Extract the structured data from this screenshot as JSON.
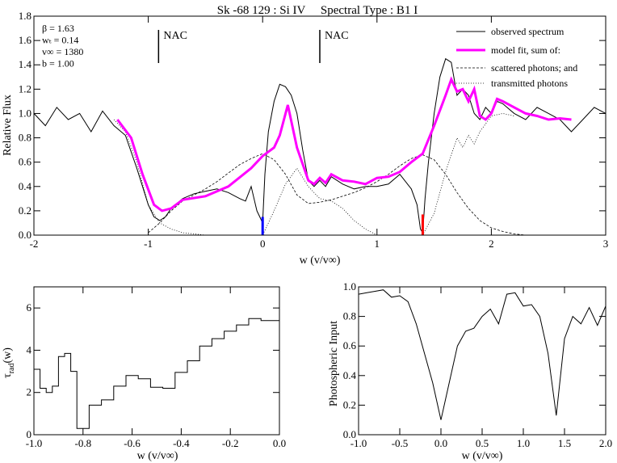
{
  "chart_data": [
    {
      "type": "line",
      "title": "Sk -68 129 : Si IV     Spectral Type : B1 I",
      "xlabel": "w (v/v∞)",
      "ylabel": "Relative Flux",
      "xlim": [
        -2,
        3
      ],
      "ylim": [
        0,
        1.8
      ],
      "xticks": [
        -2,
        -1,
        0,
        1,
        2,
        3
      ],
      "yticks": [
        0.0,
        0.2,
        0.4,
        0.6,
        0.8,
        1.0,
        1.2,
        1.4,
        1.6,
        1.8
      ],
      "params": [
        "β  = 1.63",
        "wₜ = 0.14",
        "v∞ = 1380",
        "b  = 1.00"
      ],
      "annotations": [
        {
          "label": "NAC",
          "x": -0.91
        },
        {
          "label": "NAC",
          "x": 0.5
        }
      ],
      "markers": [
        {
          "x": 0.0,
          "color": "#0000ff",
          "y_top": 0.15
        },
        {
          "x": 1.4,
          "color": "#ff0000",
          "y_top": 0.17
        }
      ],
      "legend": {
        "position": "top-right",
        "entries": [
          {
            "label": "observed spectrum",
            "style": "solid",
            "color": "#000000"
          },
          {
            "label": "model fit, sum of:",
            "style": "solid",
            "color": "#ff00ff"
          },
          {
            "label": "scattered photons; and",
            "style": "dashed",
            "color": "#000000"
          },
          {
            "label": "transmitted photons",
            "style": "dotted",
            "color": "#000000"
          }
        ]
      },
      "series": [
        {
          "name": "observed spectrum",
          "x": [
            -2.0,
            -1.9,
            -1.8,
            -1.7,
            -1.6,
            -1.5,
            -1.4,
            -1.3,
            -1.2,
            -1.1,
            -1.0,
            -0.95,
            -0.9,
            -0.85,
            -0.8,
            -0.7,
            -0.6,
            -0.5,
            -0.4,
            -0.3,
            -0.2,
            -0.15,
            -0.1,
            -0.05,
            -0.02,
            0.0,
            0.02,
            0.05,
            0.1,
            0.15,
            0.2,
            0.25,
            0.3,
            0.35,
            0.4,
            0.45,
            0.5,
            0.55,
            0.6,
            0.7,
            0.8,
            0.9,
            1.0,
            1.1,
            1.2,
            1.3,
            1.35,
            1.38,
            1.4,
            1.42,
            1.45,
            1.5,
            1.55,
            1.6,
            1.65,
            1.7,
            1.75,
            1.8,
            1.85,
            1.9,
            1.95,
            2.0,
            2.05,
            2.1,
            2.2,
            2.3,
            2.4,
            2.5,
            2.6,
            2.65,
            2.7,
            2.8,
            2.9,
            3.0
          ],
          "y": [
            1.0,
            0.9,
            1.05,
            0.95,
            1.0,
            0.85,
            1.02,
            0.9,
            0.82,
            0.55,
            0.25,
            0.15,
            0.12,
            0.15,
            0.22,
            0.3,
            0.34,
            0.36,
            0.38,
            0.35,
            0.3,
            0.28,
            0.4,
            0.2,
            0.14,
            0.1,
            0.5,
            0.85,
            1.1,
            1.24,
            1.22,
            1.15,
            1.0,
            0.7,
            0.45,
            0.4,
            0.45,
            0.4,
            0.48,
            0.42,
            0.38,
            0.4,
            0.4,
            0.42,
            0.5,
            0.38,
            0.25,
            0.05,
            0.02,
            0.3,
            0.6,
            1.0,
            1.3,
            1.45,
            1.42,
            1.15,
            1.2,
            1.15,
            1.0,
            0.95,
            1.05,
            1.0,
            1.1,
            1.08,
            1.0,
            0.95,
            1.05,
            1.0,
            0.95,
            0.9,
            0.85,
            0.95,
            1.05,
            1.0
          ]
        },
        {
          "name": "model fit, sum of:",
          "x": [
            -1.27,
            -1.15,
            -1.05,
            -0.95,
            -0.88,
            -0.8,
            -0.7,
            -0.5,
            -0.3,
            -0.1,
            0.0,
            0.1,
            0.15,
            0.22,
            0.3,
            0.4,
            0.45,
            0.5,
            0.55,
            0.6,
            0.7,
            0.8,
            0.9,
            1.0,
            1.1,
            1.2,
            1.3,
            1.4,
            1.5,
            1.6,
            1.65,
            1.7,
            1.75,
            1.8,
            1.85,
            1.9,
            1.95,
            2.0,
            2.05,
            2.1,
            2.2,
            2.3,
            2.4,
            2.5,
            2.6,
            2.7
          ],
          "y": [
            0.95,
            0.8,
            0.5,
            0.25,
            0.2,
            0.22,
            0.29,
            0.32,
            0.4,
            0.55,
            0.65,
            0.72,
            0.82,
            1.07,
            0.72,
            0.45,
            0.42,
            0.47,
            0.43,
            0.5,
            0.45,
            0.44,
            0.42,
            0.47,
            0.48,
            0.52,
            0.6,
            0.67,
            0.9,
            1.15,
            1.28,
            1.18,
            1.2,
            1.1,
            1.2,
            0.98,
            0.95,
            1.0,
            1.12,
            1.1,
            1.05,
            1.0,
            0.98,
            0.95,
            0.96,
            0.95
          ]
        },
        {
          "name": "scattered photons; and",
          "x": [
            -1.0,
            -0.9,
            -0.8,
            -0.7,
            -0.6,
            -0.5,
            -0.4,
            -0.3,
            -0.2,
            -0.1,
            0.0,
            0.1,
            0.2,
            0.3,
            0.4,
            0.5,
            0.6,
            0.7,
            0.8,
            0.9,
            1.0,
            1.1,
            1.2,
            1.3,
            1.4,
            1.5,
            1.6,
            1.7,
            1.8,
            1.9,
            2.0,
            2.1,
            2.2,
            2.3,
            2.4
          ],
          "y": [
            0.02,
            0.1,
            0.2,
            0.28,
            0.33,
            0.38,
            0.44,
            0.51,
            0.58,
            0.63,
            0.67,
            0.62,
            0.5,
            0.33,
            0.26,
            0.27,
            0.29,
            0.32,
            0.35,
            0.39,
            0.44,
            0.5,
            0.57,
            0.63,
            0.66,
            0.62,
            0.5,
            0.35,
            0.22,
            0.12,
            0.06,
            0.03,
            0.01,
            0.0,
            0.0
          ]
        },
        {
          "name": "transmitted photons",
          "x": [
            -1.3,
            -1.2,
            -1.1,
            -1.0,
            -0.9,
            -0.8,
            -0.7,
            -0.6,
            -0.5,
            -0.4,
            -0.3,
            -0.2,
            -0.1,
            0.0,
            0.1,
            0.2,
            0.3,
            0.4,
            0.5,
            0.6,
            0.7,
            0.8,
            0.9,
            1.0,
            1.1,
            1.2,
            1.3,
            1.4,
            1.5,
            1.6,
            1.7,
            1.75,
            1.8,
            1.85,
            1.9,
            2.0,
            2.1,
            2.2
          ],
          "y": [
            0.95,
            0.85,
            0.6,
            0.25,
            0.1,
            0.05,
            0.02,
            0.01,
            0.0,
            0.0,
            0.0,
            0.0,
            0.0,
            0.0,
            0.2,
            0.42,
            0.55,
            0.4,
            0.3,
            0.28,
            0.22,
            0.12,
            0.05,
            0.0,
            0.0,
            0.0,
            0.0,
            0.0,
            0.18,
            0.52,
            0.8,
            0.72,
            0.82,
            0.75,
            0.85,
            0.98,
            1.0,
            0.98
          ]
        }
      ]
    },
    {
      "type": "line",
      "title": "",
      "xlabel": "w (v/v∞)",
      "ylabel": "τrad(w)",
      "ylabel_main": "τ",
      "ylabel_sub": "rad",
      "ylabel_tail": "(w)",
      "xlim": [
        -1.0,
        0.0
      ],
      "ylim": [
        0,
        7
      ],
      "xticks": [
        -1.0,
        -0.8,
        -0.6,
        -0.4,
        -0.2,
        0.0
      ],
      "yticks": [
        0,
        2,
        4,
        6
      ],
      "series": [
        {
          "name": "tau_rad",
          "x": [
            -1.0,
            -0.975,
            -0.975,
            -0.95,
            -0.95,
            -0.925,
            -0.925,
            -0.9,
            -0.9,
            -0.875,
            -0.875,
            -0.85,
            -0.85,
            -0.825,
            -0.825,
            -0.775,
            -0.775,
            -0.725,
            -0.725,
            -0.675,
            -0.675,
            -0.625,
            -0.625,
            -0.575,
            -0.575,
            -0.525,
            -0.525,
            -0.475,
            -0.475,
            -0.425,
            -0.425,
            -0.375,
            -0.375,
            -0.325,
            -0.325,
            -0.275,
            -0.275,
            -0.225,
            -0.225,
            -0.175,
            -0.175,
            -0.125,
            -0.125,
            -0.075,
            -0.075,
            -0.025,
            -0.025,
            0.0
          ],
          "y": [
            3.1,
            3.1,
            2.2,
            2.2,
            2.0,
            2.0,
            2.3,
            2.3,
            3.7,
            3.7,
            3.85,
            3.85,
            3.0,
            3.0,
            0.3,
            0.3,
            1.4,
            1.4,
            1.65,
            1.65,
            2.3,
            2.3,
            2.8,
            2.8,
            2.65,
            2.65,
            2.25,
            2.25,
            2.2,
            2.2,
            2.95,
            2.95,
            3.5,
            3.5,
            4.2,
            4.2,
            4.55,
            4.55,
            4.9,
            4.9,
            5.2,
            5.2,
            5.5,
            5.5,
            5.4,
            5.4,
            5.4,
            5.4
          ]
        }
      ]
    },
    {
      "type": "line",
      "title": "",
      "xlabel": "w (v/v∞)",
      "ylabel": "Photospheric Input",
      "xlim": [
        -1.0,
        2.0
      ],
      "ylim": [
        0,
        1.0
      ],
      "xticks": [
        -1.0,
        -0.5,
        0.0,
        0.5,
        1.0,
        1.5,
        2.0
      ],
      "yticks": [
        0.0,
        0.2,
        0.4,
        0.6,
        0.8,
        1.0
      ],
      "series": [
        {
          "name": "photospheric input",
          "x": [
            -1.0,
            -0.9,
            -0.8,
            -0.7,
            -0.6,
            -0.5,
            -0.4,
            -0.3,
            -0.2,
            -0.1,
            0.0,
            0.1,
            0.2,
            0.3,
            0.4,
            0.5,
            0.6,
            0.7,
            0.8,
            0.9,
            1.0,
            1.1,
            1.2,
            1.3,
            1.4,
            1.5,
            1.6,
            1.7,
            1.8,
            1.9,
            2.0
          ],
          "y": [
            0.95,
            0.96,
            0.97,
            0.98,
            0.93,
            0.94,
            0.9,
            0.75,
            0.55,
            0.35,
            0.1,
            0.35,
            0.6,
            0.7,
            0.72,
            0.8,
            0.85,
            0.75,
            0.95,
            0.96,
            0.87,
            0.88,
            0.8,
            0.55,
            0.13,
            0.65,
            0.8,
            0.75,
            0.86,
            0.74,
            0.87
          ]
        }
      ]
    }
  ]
}
